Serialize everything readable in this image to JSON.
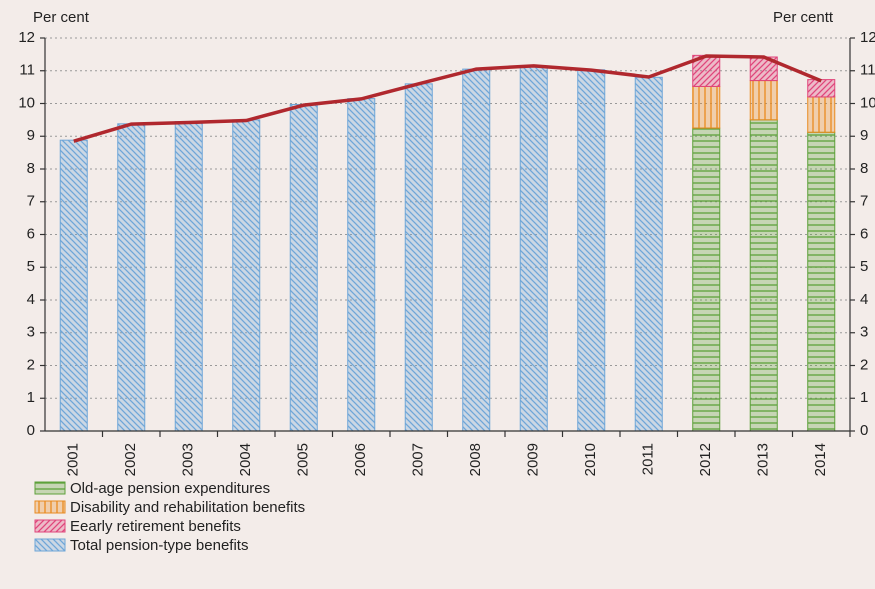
{
  "chart_data": {
    "type": "bar",
    "y_label": "Per cent",
    "y2_label": "Per centt",
    "categories": [
      "2001",
      "2002",
      "2003",
      "2004",
      "2005",
      "2006",
      "2007",
      "2008",
      "2009",
      "2010",
      "2011",
      "2012",
      "2013",
      "2014"
    ],
    "series": [
      {
        "name": "Old-age pension expenditures",
        "color": "#5da13a",
        "pattern": "horizontal",
        "stacked": true,
        "values": [
          null,
          null,
          null,
          null,
          null,
          null,
          null,
          null,
          null,
          null,
          null,
          9.25,
          9.5,
          9.12
        ]
      },
      {
        "name": "Disability and rehabilitation benefits",
        "color": "#e98a1e",
        "pattern": "vertical",
        "stacked": true,
        "values": [
          null,
          null,
          null,
          null,
          null,
          null,
          null,
          null,
          null,
          null,
          null,
          1.27,
          1.2,
          1.08
        ]
      },
      {
        "name": "Eearly retirement benefits",
        "color": "#e0457b",
        "pattern": "diagonal",
        "stacked": true,
        "values": [
          null,
          null,
          null,
          null,
          null,
          null,
          null,
          null,
          null,
          null,
          null,
          0.95,
          0.72,
          0.53
        ]
      },
      {
        "name": "Total pension-type benefits",
        "color": "#6ea6d8",
        "pattern": "diagonal-down",
        "stacked": false,
        "values": [
          8.88,
          9.38,
          9.45,
          9.5,
          9.97,
          10.15,
          10.6,
          11.05,
          11.12,
          11.03,
          10.8,
          null,
          null,
          null
        ]
      },
      {
        "type": "line",
        "color": "#b0282e",
        "values": [
          8.85,
          9.37,
          9.42,
          9.48,
          9.95,
          10.14,
          10.6,
          11.05,
          11.15,
          11.02,
          10.81,
          11.45,
          11.42,
          10.69
        ]
      }
    ],
    "ylim": [
      0,
      12
    ],
    "yticks": [
      0,
      1,
      2,
      3,
      4,
      5,
      6,
      7,
      8,
      9,
      10,
      11,
      12
    ],
    "y2lim": [
      0,
      12
    ],
    "y2ticks": [
      0,
      1,
      2,
      3,
      4,
      5,
      6,
      7,
      8,
      9,
      10,
      11,
      12
    ],
    "grid": true
  }
}
